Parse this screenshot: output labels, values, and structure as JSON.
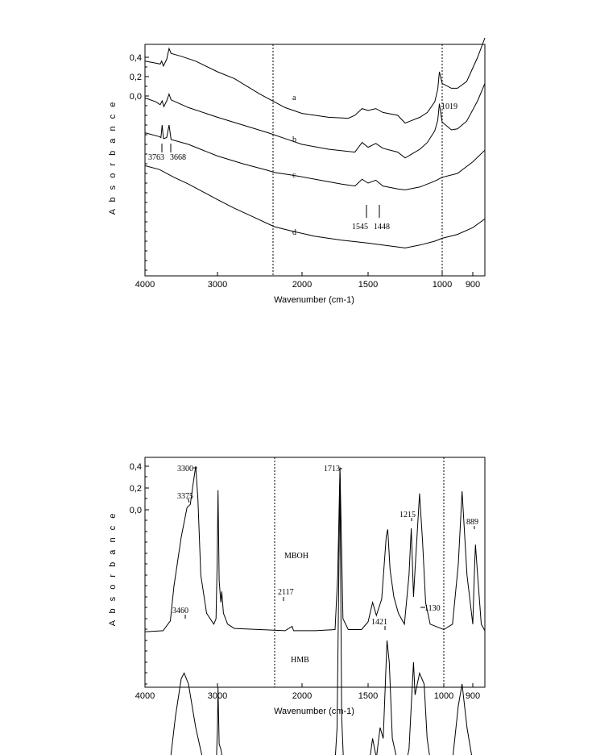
{
  "chart_data": [
    {
      "type": "line",
      "xlabel": "Wavenumber (cm-1)",
      "ylabel": "A b s o r b a n c e",
      "x_ticks": [
        "4000",
        "3000",
        "2000",
        "1500",
        "1000",
        "900"
      ],
      "y_ticks": [
        "0,4",
        "0,2",
        "0,0"
      ],
      "reference_lines_x": [
        2330,
        1000
      ],
      "series": [
        {
          "name": "a",
          "points": [
            [
              4000,
              0.36
            ],
            [
              3850,
              0.34
            ],
            [
              3790,
              0.33
            ],
            [
              3770,
              0.36
            ],
            [
              3745,
              0.31
            ],
            [
              3700,
              0.38
            ],
            [
              3668,
              0.49
            ],
            [
              3640,
              0.44
            ],
            [
              3500,
              0.41
            ],
            [
              3300,
              0.36
            ],
            [
              3000,
              0.25
            ],
            [
              2800,
              0.18
            ],
            [
              2500,
              0.02
            ],
            [
              2200,
              -0.12
            ],
            [
              2000,
              -0.18
            ],
            [
              1800,
              -0.22
            ],
            [
              1650,
              -0.23
            ],
            [
              1600,
              -0.2
            ],
            [
              1545,
              -0.13
            ],
            [
              1500,
              -0.15
            ],
            [
              1448,
              -0.13
            ],
            [
              1400,
              -0.17
            ],
            [
              1300,
              -0.2
            ],
            [
              1250,
              -0.28
            ],
            [
              1150,
              -0.22
            ],
            [
              1100,
              -0.17
            ],
            [
              1050,
              -0.06
            ],
            [
              1030,
              0.07
            ],
            [
              1019,
              0.25
            ],
            [
              1000,
              0.13
            ],
            [
              970,
              0.08
            ],
            [
              950,
              0.08
            ],
            [
              920,
              0.15
            ],
            [
              880,
              0.4
            ],
            [
              850,
              0.6
            ]
          ]
        },
        {
          "name": "b",
          "points": [
            [
              4000,
              -0.02
            ],
            [
              3850,
              -0.06
            ],
            [
              3790,
              -0.09
            ],
            [
              3763,
              -0.05
            ],
            [
              3740,
              -0.11
            ],
            [
              3700,
              -0.05
            ],
            [
              3668,
              0.02
            ],
            [
              3640,
              -0.04
            ],
            [
              3400,
              -0.12
            ],
            [
              3000,
              -0.22
            ],
            [
              2700,
              -0.3
            ],
            [
              2400,
              -0.38
            ],
            [
              2200,
              -0.44
            ],
            [
              2000,
              -0.5
            ],
            [
              1800,
              -0.55
            ],
            [
              1600,
              -0.58
            ],
            [
              1545,
              -0.48
            ],
            [
              1500,
              -0.53
            ],
            [
              1448,
              -0.49
            ],
            [
              1400,
              -0.54
            ],
            [
              1300,
              -0.58
            ],
            [
              1250,
              -0.64
            ],
            [
              1150,
              -0.55
            ],
            [
              1100,
              -0.48
            ],
            [
              1050,
              -0.36
            ],
            [
              1030,
              -0.25
            ],
            [
              1019,
              -0.08
            ],
            [
              1000,
              -0.27
            ],
            [
              970,
              -0.35
            ],
            [
              950,
              -0.34
            ],
            [
              920,
              -0.26
            ],
            [
              880,
              -0.05
            ],
            [
              850,
              0.13
            ]
          ]
        },
        {
          "name": "c",
          "points": [
            [
              4000,
              -0.38
            ],
            [
              3800,
              -0.42
            ],
            [
              3780,
              -0.43
            ],
            [
              3763,
              -0.3
            ],
            [
              3745,
              -0.44
            ],
            [
              3700,
              -0.43
            ],
            [
              3668,
              -0.3
            ],
            [
              3640,
              -0.45
            ],
            [
              3400,
              -0.5
            ],
            [
              3000,
              -0.62
            ],
            [
              2700,
              -0.7
            ],
            [
              2400,
              -0.77
            ],
            [
              2330,
              -0.79
            ],
            [
              2100,
              -0.82
            ],
            [
              1900,
              -0.86
            ],
            [
              1700,
              -0.91
            ],
            [
              1600,
              -0.93
            ],
            [
              1545,
              -0.86
            ],
            [
              1500,
              -0.9
            ],
            [
              1448,
              -0.87
            ],
            [
              1400,
              -0.93
            ],
            [
              1300,
              -0.96
            ],
            [
              1250,
              -0.97
            ],
            [
              1150,
              -0.94
            ],
            [
              1050,
              -0.88
            ],
            [
              1000,
              -0.84
            ],
            [
              950,
              -0.8
            ],
            [
              900,
              -0.68
            ],
            [
              850,
              -0.56
            ]
          ]
        },
        {
          "name": "d",
          "points": [
            [
              4000,
              -0.72
            ],
            [
              3800,
              -0.76
            ],
            [
              3600,
              -0.84
            ],
            [
              3400,
              -0.91
            ],
            [
              3200,
              -0.99
            ],
            [
              3000,
              -1.07
            ],
            [
              2800,
              -1.16
            ],
            [
              2600,
              -1.24
            ],
            [
              2330,
              -1.35
            ],
            [
              2100,
              -1.4
            ],
            [
              1900,
              -1.45
            ],
            [
              1700,
              -1.49
            ],
            [
              1500,
              -1.52
            ],
            [
              1350,
              -1.55
            ],
            [
              1250,
              -1.57
            ],
            [
              1150,
              -1.54
            ],
            [
              1050,
              -1.5
            ],
            [
              1000,
              -1.47
            ],
            [
              950,
              -1.43
            ],
            [
              900,
              -1.36
            ],
            [
              850,
              -1.27
            ]
          ]
        }
      ],
      "annotations": [
        "3763",
        "3668",
        "1545",
        "1448",
        "1019"
      ]
    },
    {
      "type": "line",
      "xlabel": "Wavenumber (cm-1)",
      "ylabel": "A b s o r b a n c e",
      "x_ticks": [
        "4000",
        "3000",
        "2000",
        "1500",
        "1000",
        "900"
      ],
      "y_ticks": [
        "0,4",
        "0,2",
        "0,0"
      ],
      "reference_lines_x": [
        2330,
        1000
      ],
      "series": [
        {
          "name": "MBOH",
          "points": [
            [
              4000,
              -1.12
            ],
            [
              3750,
              -1.11
            ],
            [
              3650,
              -1.02
            ],
            [
              3600,
              -0.7
            ],
            [
              3500,
              -0.25
            ],
            [
              3420,
              0.02
            ],
            [
              3375,
              0.05
            ],
            [
              3340,
              0.22
            ],
            [
              3300,
              0.4
            ],
            [
              3270,
              0.1
            ],
            [
              3230,
              -0.6
            ],
            [
              3150,
              -0.95
            ],
            [
              3050,
              -1.05
            ],
            [
              3020,
              -1.0
            ],
            [
              3005,
              -0.5
            ],
            [
              2993,
              0.18
            ],
            [
              2980,
              -0.65
            ],
            [
              2960,
              -0.85
            ],
            [
              2950,
              -0.75
            ],
            [
              2930,
              -0.95
            ],
            [
              2880,
              -1.05
            ],
            [
              2800,
              -1.09
            ],
            [
              2500,
              -1.1
            ],
            [
              2200,
              -1.11
            ],
            [
              2117,
              -1.07
            ],
            [
              2100,
              -1.11
            ],
            [
              1900,
              -1.11
            ],
            [
              1750,
              -1.1
            ],
            [
              1730,
              -0.6
            ],
            [
              1713,
              0.39
            ],
            [
              1700,
              -0.4
            ],
            [
              1690,
              -1.0
            ],
            [
              1650,
              -1.1
            ],
            [
              1550,
              -1.1
            ],
            [
              1500,
              -1.03
            ],
            [
              1470,
              -0.85
            ],
            [
              1445,
              -0.97
            ],
            [
              1410,
              -0.82
            ],
            [
              1380,
              -0.24
            ],
            [
              1370,
              -0.18
            ],
            [
              1355,
              -0.55
            ],
            [
              1330,
              -0.8
            ],
            [
              1300,
              -0.95
            ],
            [
              1260,
              -1.05
            ],
            [
              1230,
              -0.6
            ],
            [
              1215,
              -0.17
            ],
            [
              1200,
              -0.8
            ],
            [
              1190,
              -0.55
            ],
            [
              1160,
              0.15
            ],
            [
              1140,
              -0.3
            ],
            [
              1120,
              -0.85
            ],
            [
              1090,
              -1.05
            ],
            [
              1000,
              -1.1
            ],
            [
              970,
              -1.05
            ],
            [
              950,
              -0.5
            ],
            [
              937,
              0.17
            ],
            [
              920,
              -0.6
            ],
            [
              900,
              -1.05
            ],
            [
              893,
              -0.55
            ],
            [
              889,
              -0.32
            ],
            [
              880,
              -0.6
            ],
            [
              865,
              -1.05
            ],
            [
              850,
              -1.11
            ]
          ]
        },
        {
          "name": "HMB",
          "points": [
            [
              4000,
              -2.52
            ],
            [
              3750,
              -2.51
            ],
            [
              3650,
              -2.3
            ],
            [
              3580,
              -1.9
            ],
            [
              3500,
              -1.55
            ],
            [
              3460,
              -1.5
            ],
            [
              3400,
              -1.6
            ],
            [
              3300,
              -2.0
            ],
            [
              3200,
              -2.3
            ],
            [
              3100,
              -2.42
            ],
            [
              3020,
              -2.4
            ],
            [
              3000,
              -2.0
            ],
            [
              2993,
              -1.63
            ],
            [
              2980,
              -2.15
            ],
            [
              2960,
              -2.2
            ],
            [
              2930,
              -2.33
            ],
            [
              2850,
              -2.45
            ],
            [
              2700,
              -2.5
            ],
            [
              2400,
              -2.51
            ],
            [
              2000,
              -2.51
            ],
            [
              1760,
              -2.51
            ],
            [
              1735,
              -2.0
            ],
            [
              1713,
              0.33
            ],
            [
              1700,
              -1.9
            ],
            [
              1680,
              -2.5
            ],
            [
              1550,
              -2.5
            ],
            [
              1500,
              -2.4
            ],
            [
              1470,
              -2.1
            ],
            [
              1445,
              -2.28
            ],
            [
              1421,
              -2.0
            ],
            [
              1400,
              -2.1
            ],
            [
              1375,
              -1.2
            ],
            [
              1360,
              -1.4
            ],
            [
              1340,
              -2.1
            ],
            [
              1300,
              -2.35
            ],
            [
              1260,
              -2.4
            ],
            [
              1230,
              -2.2
            ],
            [
              1200,
              -1.4
            ],
            [
              1190,
              -1.7
            ],
            [
              1160,
              -1.5
            ],
            [
              1130,
              -1.6
            ],
            [
              1110,
              -2.1
            ],
            [
              1080,
              -2.4
            ],
            [
              1050,
              -2.48
            ],
            [
              1020,
              -2.45
            ],
            [
              1000,
              -2.4
            ],
            [
              970,
              -2.3
            ],
            [
              950,
              -1.8
            ],
            [
              937,
              -1.6
            ],
            [
              920,
              -2.0
            ],
            [
              890,
              -2.45
            ],
            [
              850,
              -2.48
            ]
          ]
        }
      ],
      "annotations": [
        "3300",
        "3375",
        "3460",
        "2117",
        "1713",
        "1215",
        "1421",
        "1130",
        "889"
      ]
    }
  ],
  "top": {
    "y_ticks": [
      "0,4",
      "0,2",
      "0,0"
    ],
    "x_ticks": [
      "4000",
      "3000",
      "2000",
      "1500",
      "1000",
      "900"
    ],
    "xlabel": "Wavenumber (cm-1)",
    "ylabel": "A b s o r b a n c e",
    "labels": {
      "a": "a",
      "b": "b",
      "c": "c",
      "d": "d",
      "p3763": "3763",
      "p3668": "3668",
      "p1545": "1545",
      "p1448": "1448",
      "p1019": "1019"
    }
  },
  "bottom": {
    "y_ticks": [
      "0,4",
      "0,2",
      "0,0"
    ],
    "x_ticks": [
      "4000",
      "3000",
      "2000",
      "1500",
      "1000",
      "900"
    ],
    "xlabel": "Wavenumber (cm-1)",
    "ylabel": "A b s o r b a n c e",
    "labels": {
      "mboh": "MBOH",
      "hmb": "HMB",
      "p3300": "3300",
      "p3375": "3375",
      "p3460": "3460",
      "p2117": "2117",
      "p1713": "1713",
      "p1215": "1215",
      "p1421": "1421",
      "p1130": "1130",
      "p889": "889"
    }
  }
}
